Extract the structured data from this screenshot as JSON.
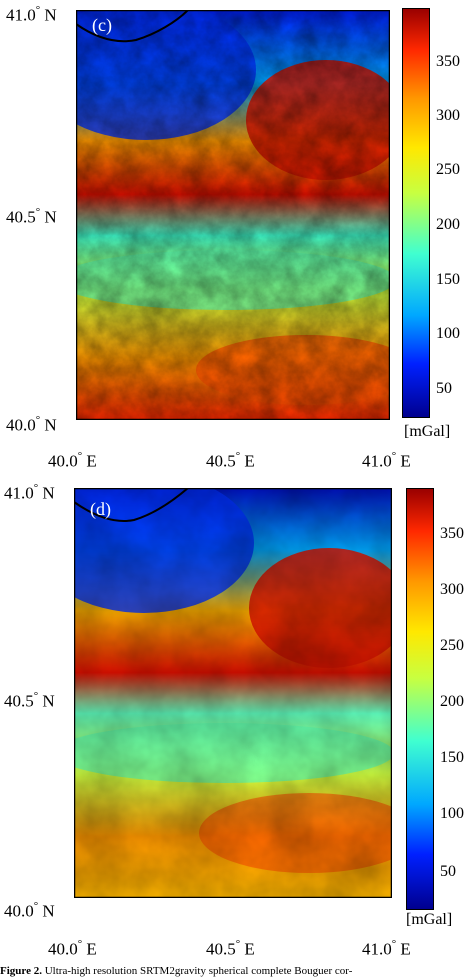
{
  "caption": {
    "label": "Figure 2.",
    "text": "Ultra-high resolution SRTM2gravity spherical complete Bouguer cor-"
  },
  "colormap": [
    "#00008f",
    "#0020ff",
    "#00a8ff",
    "#40ffd0",
    "#c8ff40",
    "#ffe800",
    "#ff9800",
    "#ff2800",
    "#9a0000"
  ],
  "panels": [
    {
      "id": "c",
      "panel_label": "(c)",
      "lat_labels": [
        {
          "deg": "41.0",
          "hem": "N"
        },
        {
          "deg": "40.5",
          "hem": "N"
        },
        {
          "deg": "40.0",
          "hem": "N"
        }
      ],
      "lon_labels": [
        {
          "deg": "40.0",
          "hem": "E"
        },
        {
          "deg": "40.5",
          "hem": "E"
        },
        {
          "deg": "41.0",
          "hem": "E"
        }
      ],
      "colorbar": {
        "ticks": [
          "350",
          "300",
          "250",
          "200",
          "150",
          "100",
          "50"
        ],
        "unit": "[mGal]",
        "range": [
          20,
          390
        ]
      }
    },
    {
      "id": "d",
      "panel_label": "(d)",
      "lat_labels": [
        {
          "deg": "41.0",
          "hem": "N"
        },
        {
          "deg": "40.5",
          "hem": "N"
        },
        {
          "deg": "40.0",
          "hem": "N"
        }
      ],
      "lon_labels": [
        {
          "deg": "40.0",
          "hem": "E"
        },
        {
          "deg": "40.5",
          "hem": "E"
        },
        {
          "deg": "41.0",
          "hem": "E"
        }
      ],
      "colorbar": {
        "ticks": [
          "350",
          "300",
          "250",
          "200",
          "150",
          "100",
          "50"
        ],
        "unit": "[mGal]",
        "range": [
          20,
          390
        ]
      }
    }
  ]
}
